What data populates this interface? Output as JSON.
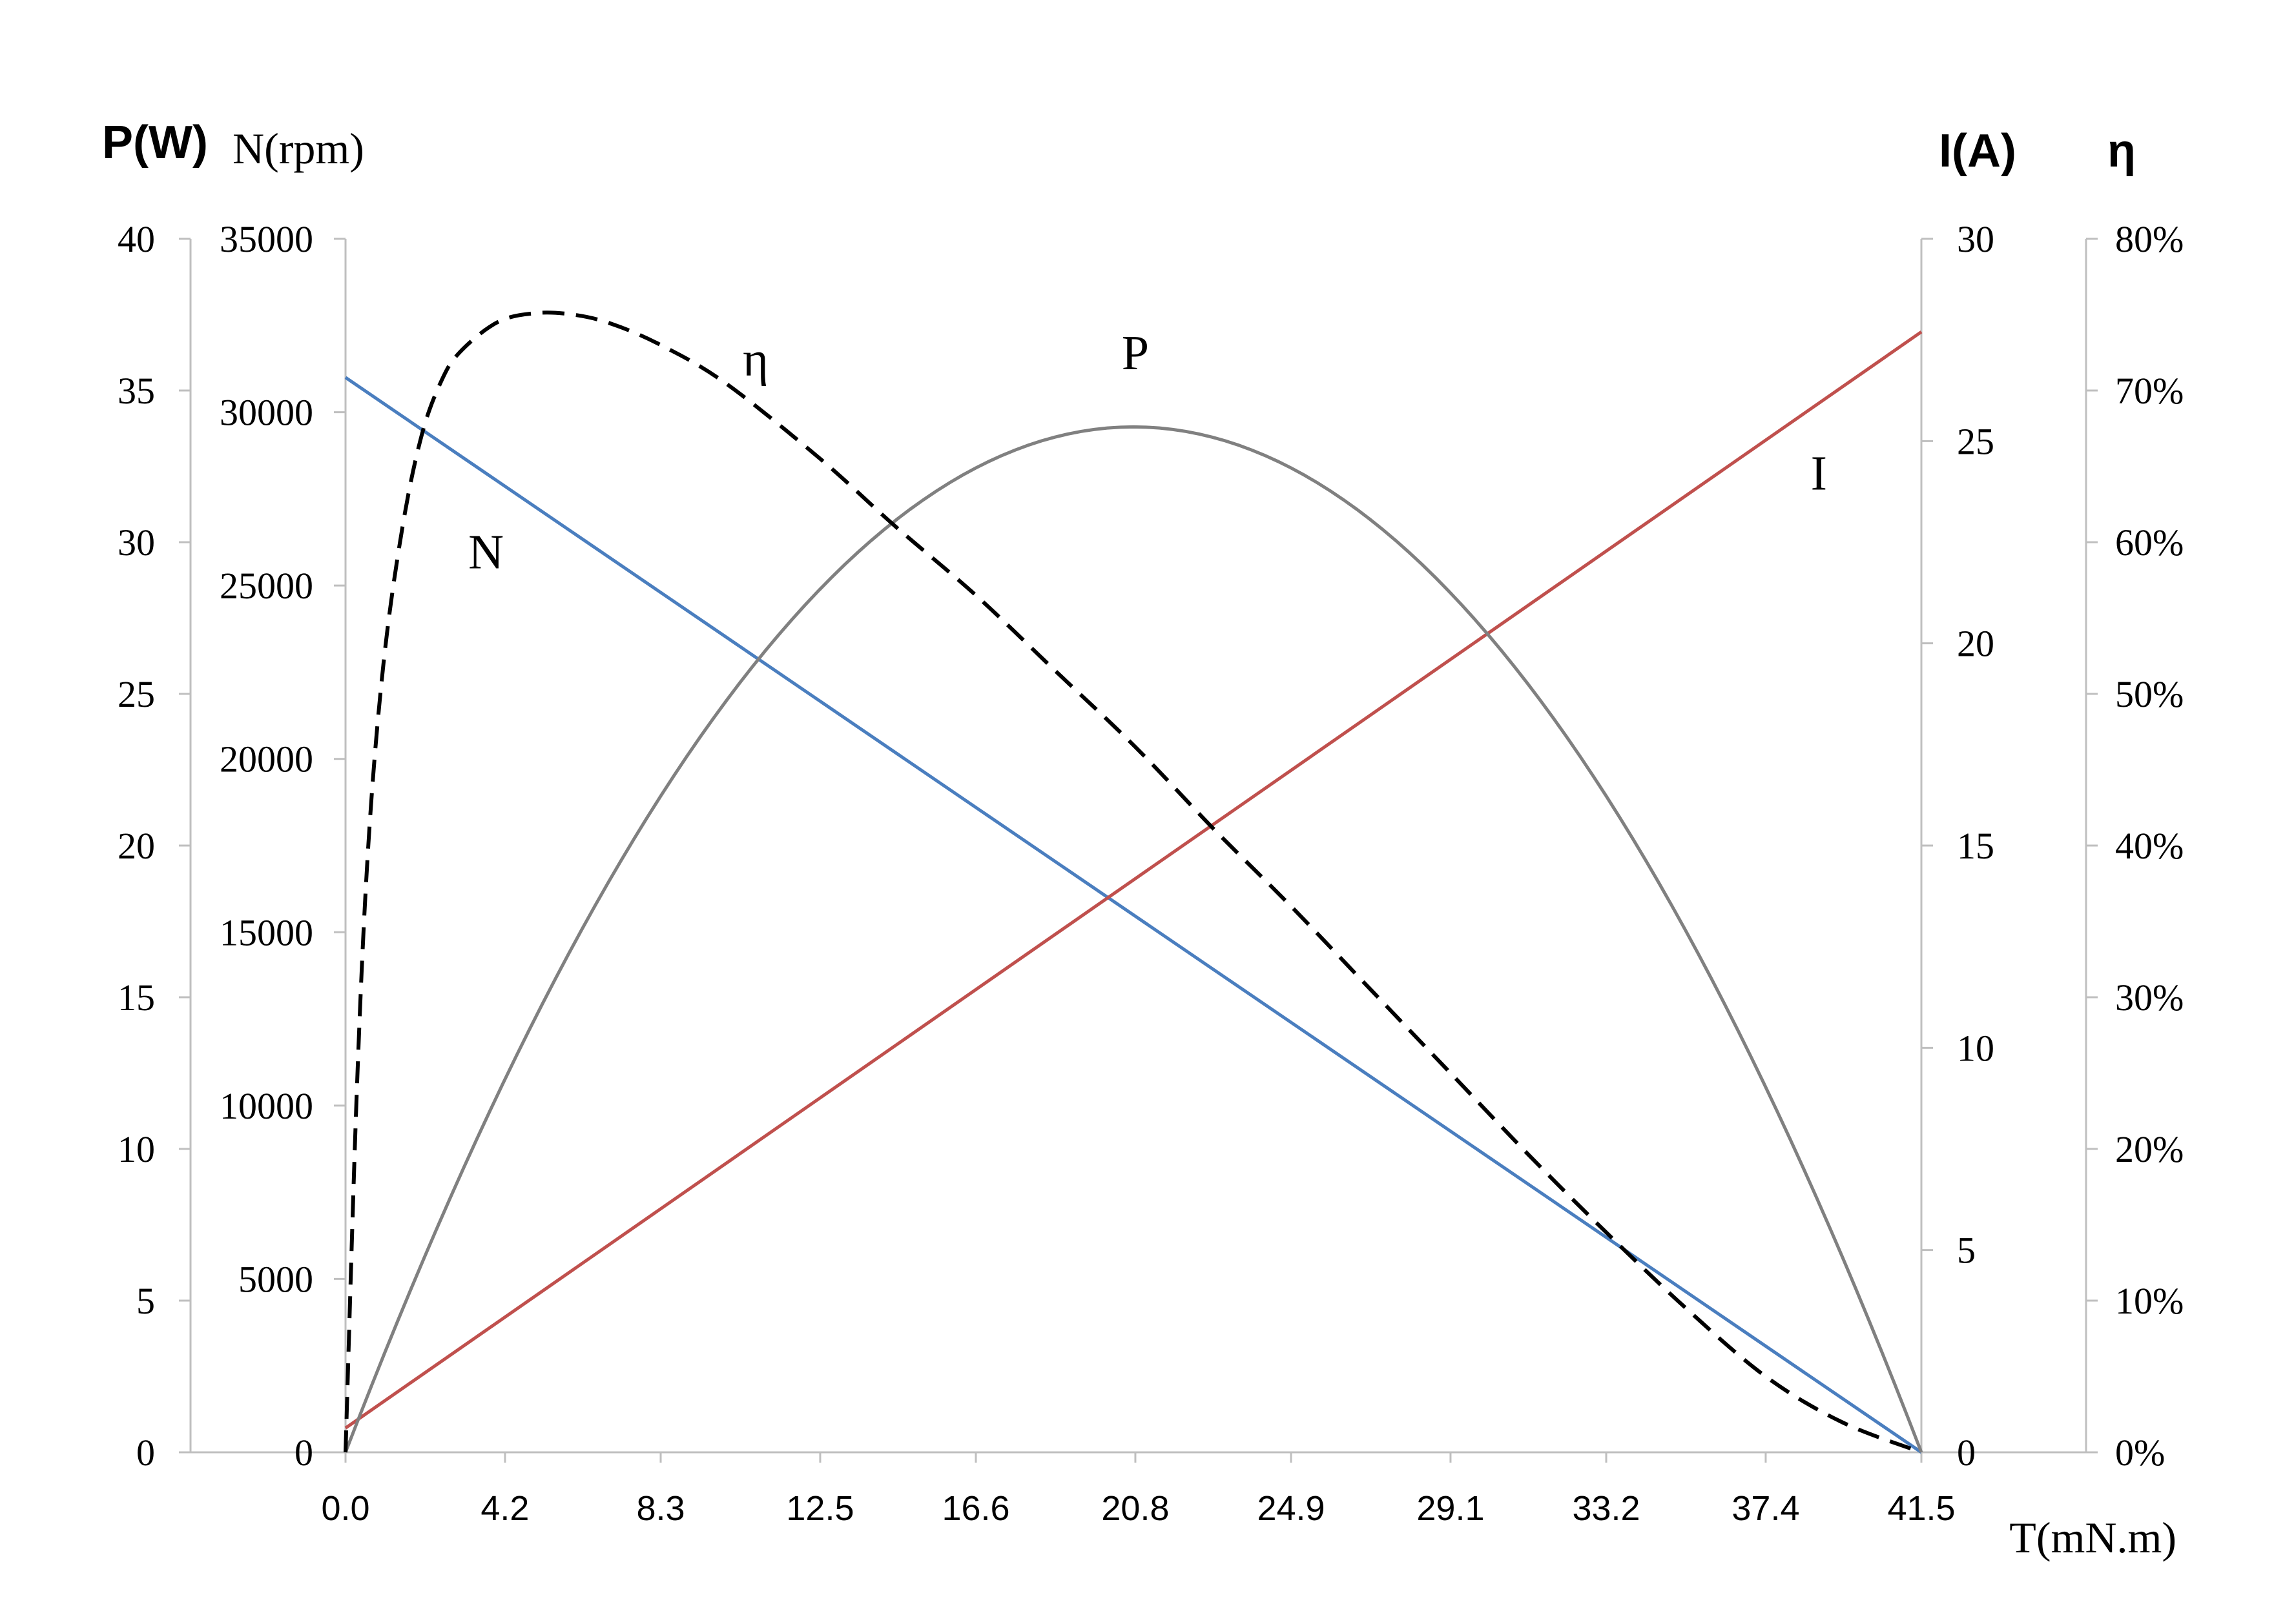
{
  "chart_data": {
    "type": "line",
    "xlabel": "T(mN.m)",
    "x_ticks": [
      "0.0",
      "4.2",
      "8.3",
      "12.5",
      "16.6",
      "20.8",
      "24.9",
      "29.1",
      "33.2",
      "37.4",
      "41.5"
    ],
    "xlim": [
      0,
      41.5
    ],
    "axes": {
      "power": {
        "title": "P(W)",
        "ylim": [
          0,
          40
        ],
        "ticks": [
          "0",
          "5",
          "10",
          "15",
          "20",
          "25",
          "30",
          "35",
          "40"
        ]
      },
      "speed": {
        "title": "N(rpm)",
        "ylim": [
          0,
          35000
        ],
        "ticks": [
          "0",
          "5000",
          "10000",
          "15000",
          "20000",
          "25000",
          "30000",
          "35000"
        ]
      },
      "current": {
        "title": "I(A)",
        "ylim": [
          0,
          30
        ],
        "ticks": [
          "0",
          "5",
          "10",
          "15",
          "20",
          "25",
          "30"
        ]
      },
      "efficiency": {
        "title": "η",
        "ylim": [
          0,
          80
        ],
        "ticks": [
          "0%",
          "10%",
          "20%",
          "30%",
          "40%",
          "50%",
          "60%",
          "70%",
          "80%"
        ]
      }
    },
    "series": [
      {
        "name": "N",
        "axis": "speed",
        "color": "#4a7ebf",
        "style": "solid",
        "x": [
          0,
          41.5
        ],
        "y": [
          31000,
          0
        ]
      },
      {
        "name": "I",
        "axis": "current",
        "color": "#c0504d",
        "style": "solid",
        "x": [
          0,
          41.5
        ],
        "y": [
          0.6,
          27.7
        ]
      },
      {
        "name": "P",
        "axis": "power",
        "color": "#808080",
        "style": "solid",
        "x": [
          0,
          4.2,
          8.3,
          12.5,
          16.6,
          20.8,
          24.9,
          29.1,
          33.2,
          37.4,
          41.5
        ],
        "y": [
          0,
          12.2,
          21.7,
          28.5,
          32.5,
          33.8,
          32.5,
          28.5,
          21.7,
          12.2,
          0
        ]
      },
      {
        "name": "η",
        "axis": "efficiency",
        "color": "#000000",
        "style": "dashed",
        "x": [
          0,
          0.3,
          0.6,
          1.0,
          1.5,
          2.0,
          2.5,
          3.0,
          4.0,
          5.0,
          6.0,
          7.0,
          8.3,
          10.0,
          12.5,
          14.5,
          16.6,
          18.7,
          20.8,
          22.9,
          24.9,
          27.0,
          29.1,
          31.2,
          33.2,
          35.3,
          37.4,
          39.4,
          41.5
        ],
        "y": [
          0,
          24,
          40,
          52,
          61,
          67,
          70.5,
          72.5,
          74.5,
          75.1,
          75.0,
          74.4,
          73,
          70.5,
          65.5,
          61,
          56.5,
          51.5,
          46.5,
          41,
          36,
          30.5,
          25,
          19.5,
          14.5,
          9.5,
          5,
          2,
          0
        ]
      }
    ],
    "annotations": [
      {
        "text": "η",
        "x": 10.8,
        "y_efficiency": 71
      },
      {
        "text": "P",
        "x": 20.8,
        "y_power": 35.7
      },
      {
        "text": "N",
        "x": 3.7,
        "y_speed": 25500
      },
      {
        "text": "I",
        "x": 38.8,
        "y_current": 23.8
      }
    ],
    "grid": false,
    "legend": "none"
  }
}
